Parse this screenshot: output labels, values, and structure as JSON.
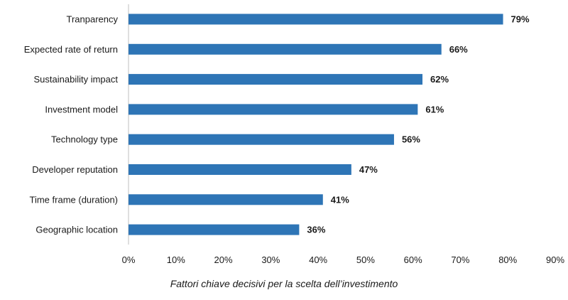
{
  "chart_data": {
    "type": "bar",
    "orientation": "horizontal",
    "categories": [
      "Tranparency",
      "Expected rate of return",
      "Sustainability impact",
      "Investment model",
      "Technology type",
      "Developer reputation",
      "Time frame (duration)",
      "Geographic location"
    ],
    "values": [
      79,
      66,
      62,
      61,
      56,
      47,
      41,
      36
    ],
    "value_labels": [
      "79%",
      "66%",
      "62%",
      "61%",
      "56%",
      "47%",
      "41%",
      "36%"
    ],
    "x_ticks": [
      "0%",
      "10%",
      "20%",
      "30%",
      "40%",
      "50%",
      "60%",
      "70%",
      "80%",
      "90%"
    ],
    "xlim": [
      0,
      90
    ],
    "grid": false,
    "bar_color": "#2e75b6",
    "caption": "Fattori chiave decisivi per la scelta dell’investimento"
  }
}
